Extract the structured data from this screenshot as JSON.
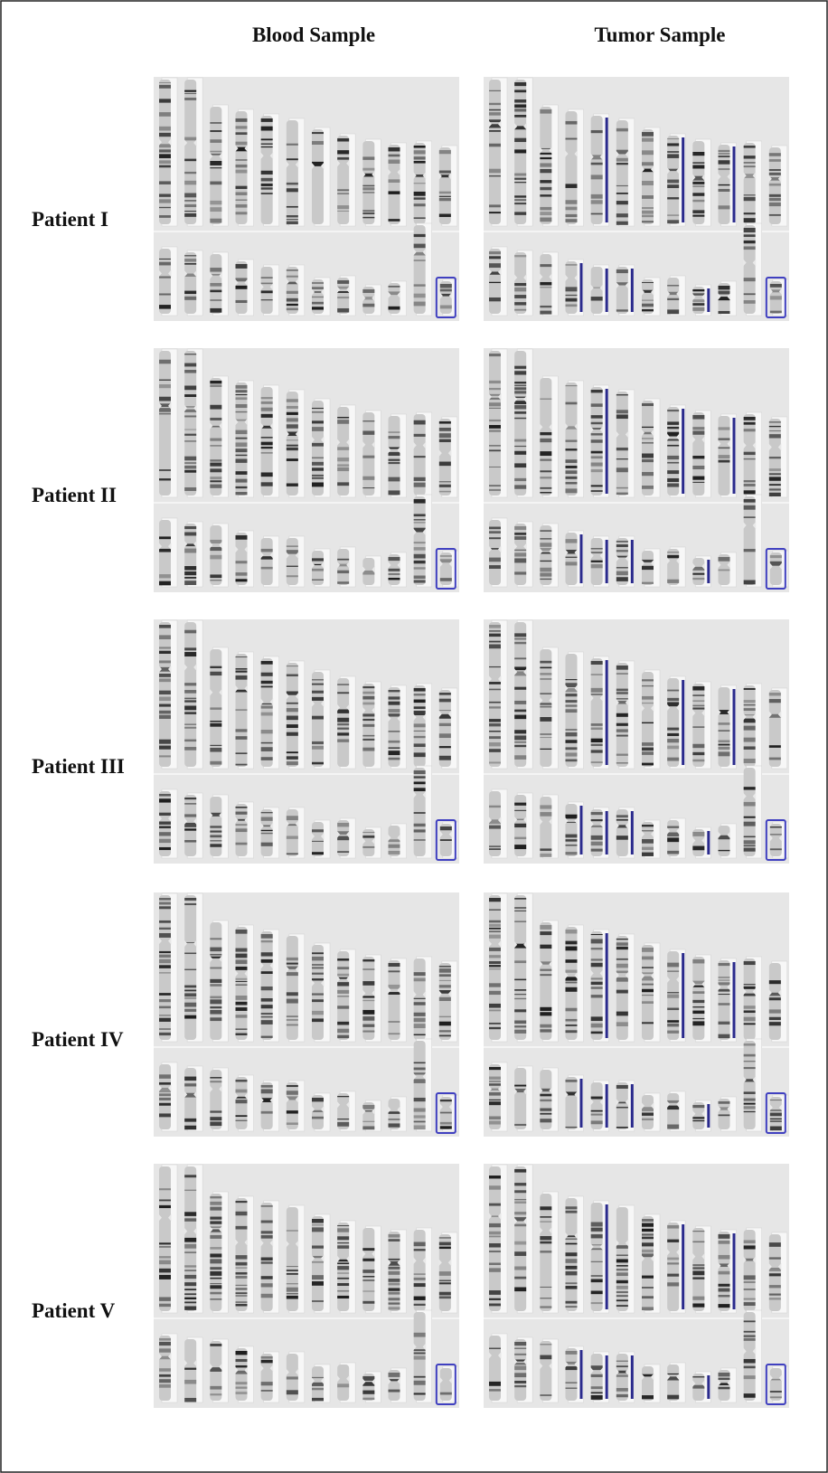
{
  "columns": [
    "Blood Sample",
    "Tumor Sample"
  ],
  "rows": [
    "Patient I",
    "Patient II",
    "Patient III",
    "Patient IV",
    "Patient V"
  ]
}
